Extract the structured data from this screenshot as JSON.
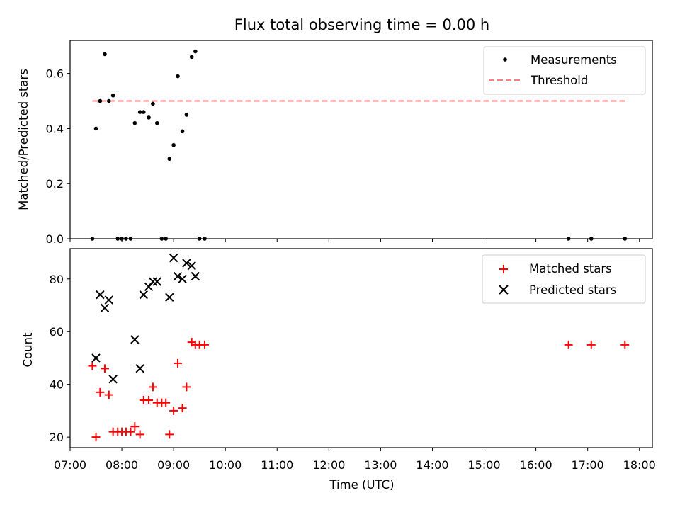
{
  "chart_data": [
    {
      "type": "scatter",
      "title": "Flux total observing time = 0.00 h",
      "ylabel": "Matched/Predicted stars",
      "xlabel": "",
      "xlim": [
        7.0,
        18.25
      ],
      "ylim": [
        0.0,
        0.72
      ],
      "yticks": [
        0.0,
        0.2,
        0.4,
        0.6
      ],
      "ytick_labels": [
        "0.0",
        "0.2",
        "0.4",
        "0.6"
      ],
      "legend_position": "upper right",
      "series": [
        {
          "name": "Measurements",
          "marker": "dot",
          "color": "#000000",
          "x": [
            7.43,
            7.5,
            7.58,
            7.67,
            7.75,
            7.83,
            7.92,
            8.0,
            8.08,
            8.17,
            8.25,
            8.35,
            8.42,
            8.52,
            8.6,
            8.68,
            8.77,
            8.85,
            8.92,
            9.0,
            9.08,
            9.17,
            9.25,
            9.35,
            9.42,
            9.5,
            9.6,
            16.63,
            17.07,
            17.72
          ],
          "y": [
            0.0,
            0.4,
            0.5,
            0.67,
            0.5,
            0.52,
            0.0,
            0.0,
            0.0,
            0.0,
            0.42,
            0.46,
            0.46,
            0.44,
            0.49,
            0.42,
            0.0,
            0.0,
            0.29,
            0.34,
            0.59,
            0.39,
            0.45,
            0.66,
            0.68,
            0.0,
            0.0,
            0.0,
            0.0,
            0.0
          ]
        },
        {
          "name": "Threshold",
          "style": "dashed",
          "color": "#ff8080",
          "x": [
            7.43,
            17.72
          ],
          "y": [
            0.5,
            0.5
          ]
        }
      ]
    },
    {
      "type": "scatter",
      "title": "",
      "ylabel": "Count",
      "xlabel": "Time (UTC)",
      "xlim": [
        7.0,
        18.25
      ],
      "ylim": [
        16.0,
        91.5
      ],
      "xticks": [
        7,
        8,
        9,
        10,
        11,
        12,
        13,
        14,
        15,
        16,
        17,
        18
      ],
      "xtick_labels": [
        "07:00",
        "08:00",
        "09:00",
        "10:00",
        "11:00",
        "12:00",
        "13:00",
        "14:00",
        "15:00",
        "16:00",
        "17:00",
        "18:00"
      ],
      "yticks": [
        20,
        40,
        60,
        80
      ],
      "ytick_labels": [
        "20",
        "40",
        "60",
        "80"
      ],
      "legend_position": "upper right",
      "series": [
        {
          "name": "Matched stars",
          "marker": "plus",
          "color": "#ff0000",
          "x": [
            7.43,
            7.5,
            7.58,
            7.67,
            7.75,
            7.83,
            7.92,
            8.0,
            8.08,
            8.17,
            8.25,
            8.35,
            8.42,
            8.52,
            8.6,
            8.68,
            8.77,
            8.85,
            8.92,
            9.0,
            9.08,
            9.17,
            9.25,
            9.35,
            9.42,
            9.5,
            9.6,
            16.63,
            17.07,
            17.72
          ],
          "y": [
            47,
            20,
            37,
            46,
            36,
            22,
            22,
            22,
            22,
            22,
            24,
            21,
            34,
            34,
            39,
            33,
            33,
            33,
            21,
            30,
            48,
            31,
            39,
            56,
            55,
            55,
            55,
            55,
            55,
            55
          ]
        },
        {
          "name": "Predicted stars",
          "marker": "x",
          "color": "#000000",
          "x": [
            7.5,
            7.58,
            7.67,
            7.75,
            7.83,
            8.25,
            8.35,
            8.42,
            8.52,
            8.6,
            8.68,
            8.92,
            9.0,
            9.08,
            9.17,
            9.25,
            9.35,
            9.42
          ],
          "y": [
            50,
            74,
            69,
            72,
            42,
            57,
            46,
            74,
            77,
            79,
            79,
            73,
            88,
            81,
            80,
            86,
            85,
            81
          ]
        }
      ]
    }
  ]
}
